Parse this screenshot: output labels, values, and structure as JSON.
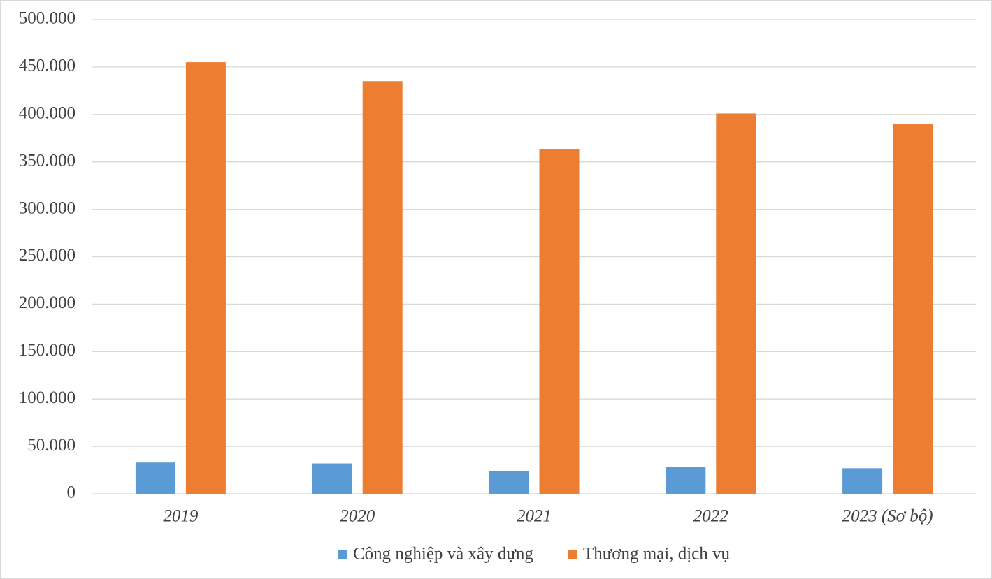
{
  "chart_data": {
    "type": "bar",
    "categories": [
      "2019",
      "2020",
      "2021",
      "2022",
      "2023 (Sơ bộ)"
    ],
    "series": [
      {
        "name": "Công nghiệp và xây dựng",
        "color": "#5b9bd5",
        "values": [
          33000,
          32000,
          24000,
          28000,
          27000
        ]
      },
      {
        "name": "Thương mại, dịch vụ",
        "color": "#ed7d31",
        "values": [
          455000,
          435000,
          363000,
          401000,
          390000
        ]
      }
    ],
    "ylim": [
      0,
      500000
    ],
    "yticks": [
      0,
      {
        "value": 50000,
        "label": "50.000"
      },
      {
        "value": 100000,
        "label": "100.000"
      },
      {
        "value": 150000,
        "label": "150.000"
      },
      {
        "value": 200000,
        "label": "200.000"
      },
      {
        "value": 250000,
        "label": "250.000"
      },
      {
        "value": 300000,
        "label": "300.000"
      },
      {
        "value": 350000,
        "label": "350.000"
      },
      {
        "value": 400000,
        "label": "400.000"
      },
      {
        "value": 450000,
        "label": "450.000"
      },
      {
        "value": 500000,
        "label": "500.000"
      }
    ],
    "grid": true,
    "legend": "bottom"
  }
}
